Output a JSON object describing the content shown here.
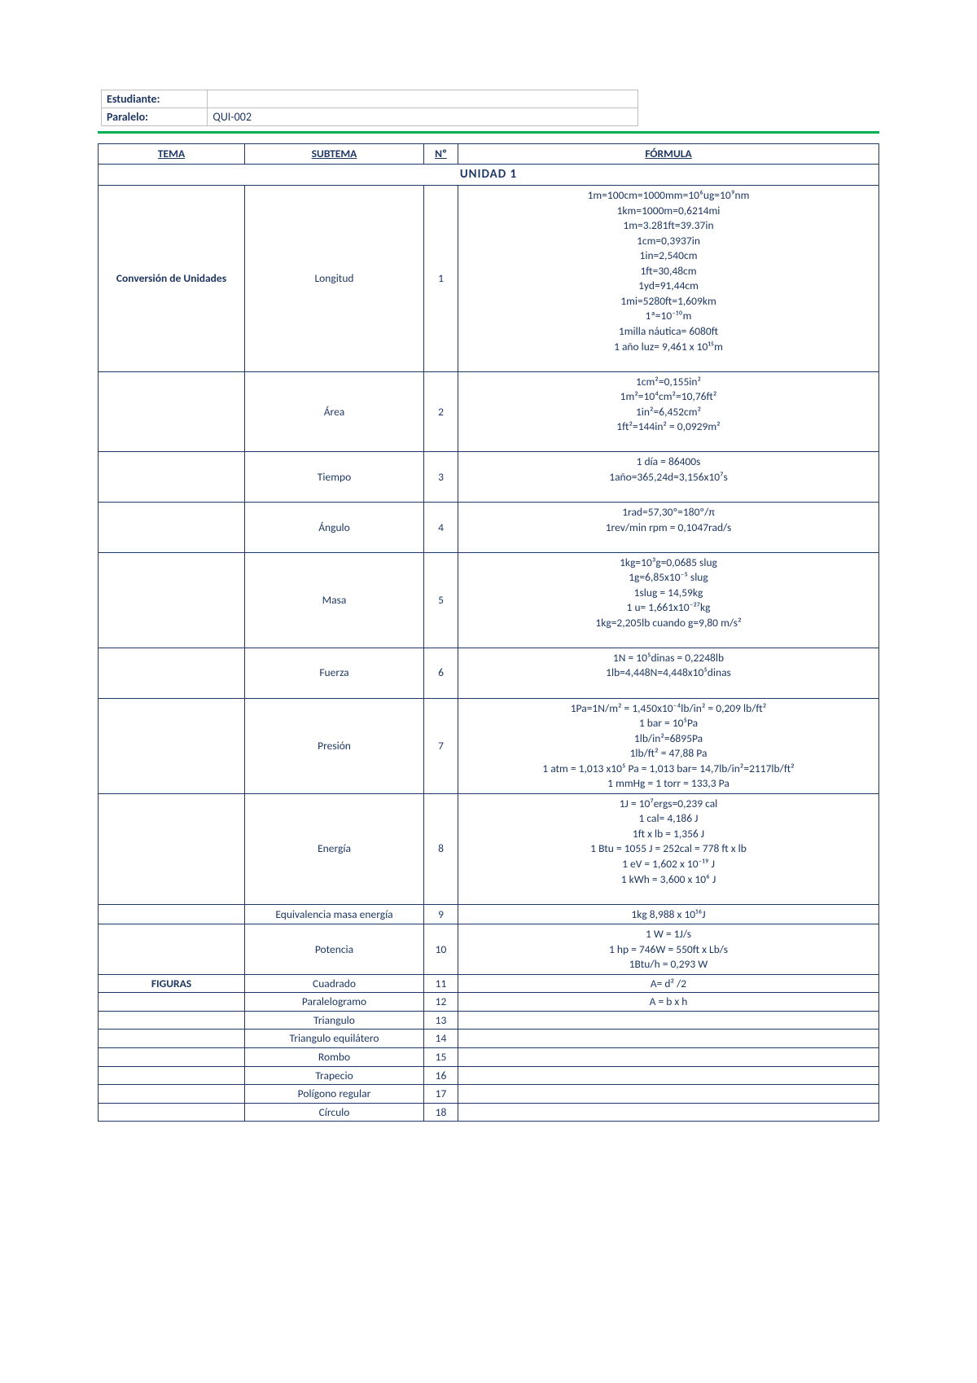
{
  "colors": {
    "text": "#1f3864",
    "border": "#1f3864",
    "info_border": "#bfbfbf",
    "green_rule": "#00b050",
    "background": "#ffffff"
  },
  "info": {
    "estudiante_label": "Estudiante:",
    "estudiante_value": "",
    "paralelo_label": "Paralelo:",
    "paralelo_value": "QUI-002"
  },
  "headers": {
    "tema": "TEMA",
    "subtema": "SUBTEMA",
    "num": "Nº",
    "formula": "FÓRMULA"
  },
  "unit_title": "UNIDAD 1",
  "rows": [
    {
      "tema": "Conversión de Unidades",
      "subtema": "Longitud",
      "num": "1",
      "formulas": [
        "1m=100cm=1000mm=10⁶ug=10⁹nm",
        "1km=1000m=0,6214mi",
        "1m=3.281ft=39.37in",
        "1cm=0,3937in",
        "1in=2,540cm",
        "1ft=30,48cm",
        "1yd=91,44cm",
        "1mi=5280ft=1,609km",
        "1ª=10⁻¹⁰m",
        "1milla náutica= 6080ft",
        "1 año luz= 9,461 x 10¹⁵m",
        ""
      ],
      "showTema": true
    },
    {
      "subtema": "Área",
      "num": "2",
      "formulas": [
        "1cm²=0,155in²",
        "1m²=10⁴cm²=10,76ft²",
        "1in²=6,452cm²",
        "1ft²=144in² = 0,0929m²",
        ""
      ]
    },
    {
      "subtema": "Tiempo",
      "num": "3",
      "formulas": [
        "1 día = 86400s",
        "1año=365,24d=3,156x10⁷s",
        ""
      ]
    },
    {
      "subtema": "Ángulo",
      "num": "4",
      "formulas": [
        "1rad=57,30º=180º/π",
        "1rev/min rpm = 0,1047rad/s",
        ""
      ]
    },
    {
      "subtema": "Masa",
      "num": "5",
      "formulas": [
        "1kg=10³g=0,0685 slug",
        "1g=6,85x10⁻⁵ slug",
        "1slug = 14,59kg",
        "1 u= 1,661x10⁻²⁷kg",
        "1kg=2,205lb cuando g=9,80 m/s²",
        ""
      ]
    },
    {
      "subtema": "Fuerza",
      "num": "6",
      "formulas": [
        "1N = 10⁵dinas = 0,2248lb",
        "1lb=4,448N=4,448x10⁵dinas",
        ""
      ]
    },
    {
      "subtema": "Presión",
      "num": "7",
      "formulas": [
        "1Pa=1N/m² = 1,450x10⁻⁴lb/in² = 0,209 lb/ft²",
        "1 bar = 10⁵Pa",
        "1lb/in²=6895Pa",
        "1lb/ft² = 47,88 Pa",
        "1 atm = 1,013 x10⁵ Pa = 1,013 bar= 14,7lb/in²=2117lb/ft²",
        "1 mmHg = 1 torr = 133,3 Pa"
      ]
    },
    {
      "subtema": "Energía",
      "num": "8",
      "formulas": [
        "1J = 10⁷ergs=0,239 cal",
        "1 cal= 4,186 J",
        "1ft x lb = 1,356 J",
        "1 Btu = 1055 J = 252cal = 778 ft x lb",
        "1 eV = 1,602 x 10⁻¹⁹ J",
        "1 kWh = 3,600 x 10⁶ J",
        ""
      ]
    },
    {
      "subtema": "Equivalencia masa energía",
      "num": "9",
      "formulas": [
        "1kg 8,988 x 10¹⁶J"
      ]
    },
    {
      "subtema": "Potencia",
      "num": "10",
      "formulas": [
        "1 W = 1J/s",
        "1 hp = 746W = 550ft x Lb/s",
        "1Btu/h = 0,293 W"
      ]
    },
    {
      "tema": "FIGURAS",
      "subtema": "Cuadrado",
      "num": "11",
      "formulas": [
        "A= d² /2"
      ],
      "showTema": true,
      "slim": true
    },
    {
      "subtema": "Paralelogramo",
      "num": "12",
      "formulas": [
        "A = b x h"
      ],
      "slim": true
    },
    {
      "subtema": "Triangulo",
      "num": "13",
      "formulas": [
        ""
      ],
      "slim": true
    },
    {
      "subtema": "Triangulo equilátero",
      "num": "14",
      "formulas": [
        ""
      ],
      "slim": true
    },
    {
      "subtema": "Rombo",
      "num": "15",
      "formulas": [
        ""
      ],
      "slim": true
    },
    {
      "subtema": "Trapecio",
      "num": "16",
      "formulas": [
        ""
      ],
      "slim": true
    },
    {
      "subtema": "Polígono regular",
      "num": "17",
      "formulas": [
        ""
      ],
      "slim": true
    },
    {
      "subtema": "Círculo",
      "num": "18",
      "formulas": [
        ""
      ],
      "slim": true
    }
  ]
}
